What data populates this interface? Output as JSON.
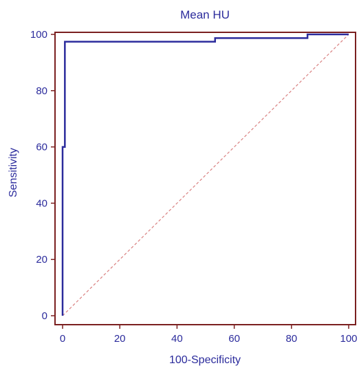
{
  "chart_data": {
    "type": "line",
    "title": "Mean HU",
    "xlabel": "100-Specificity",
    "ylabel": "Sensitivity",
    "xlim": [
      0,
      100
    ],
    "ylim": [
      0,
      100
    ],
    "x_ticks": [
      0,
      20,
      40,
      60,
      80,
      100
    ],
    "y_ticks": [
      0,
      20,
      40,
      60,
      80,
      100
    ],
    "grid": false,
    "series": [
      {
        "role": "roc-curve",
        "color": "#2b2b9c",
        "style": "solid",
        "x": [
          0,
          0,
          0,
          0.8,
          0.8,
          53.3,
          53.3,
          85.6,
          85.6,
          100
        ],
        "y": [
          0,
          40,
          60,
          60,
          97.4,
          97.4,
          98.7,
          98.7,
          100,
          100
        ]
      },
      {
        "role": "reference-diagonal",
        "color": "#d98080",
        "style": "dashed",
        "x": [
          0,
          100
        ],
        "y": [
          0,
          100
        ]
      }
    ],
    "frame_color": "#7a1f1f"
  }
}
